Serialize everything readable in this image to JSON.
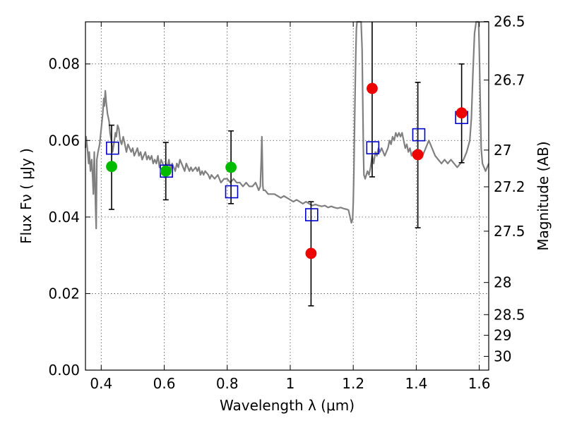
{
  "chart_data": {
    "type": "scatter",
    "xlabel": "Wavelength  λ (μm)",
    "ylabel": "Flux  Fν  ( μJy )",
    "y2label": "Magnitude (AB)",
    "xlim": [
      0.35,
      1.63
    ],
    "ylim": [
      0.0,
      0.091
    ],
    "grid": true,
    "x_ticks": [
      {
        "v": 0.4,
        "label": "0.4"
      },
      {
        "v": 0.6,
        "label": "0.6"
      },
      {
        "v": 0.8,
        "label": "0.8"
      },
      {
        "v": 1.0,
        "label": "1"
      },
      {
        "v": 1.2,
        "label": "1.2"
      },
      {
        "v": 1.4,
        "label": "1.4"
      },
      {
        "v": 1.6,
        "label": "1.6"
      }
    ],
    "y_ticks": [
      {
        "v": 0.0,
        "label": "0.00"
      },
      {
        "v": 0.02,
        "label": "0.02"
      },
      {
        "v": 0.04,
        "label": "0.04"
      },
      {
        "v": 0.06,
        "label": "0.06"
      },
      {
        "v": 0.08,
        "label": "0.08"
      }
    ],
    "mag_ticks": [
      {
        "flux": 0.0911,
        "label": "26.5"
      },
      {
        "flux": 0.0758,
        "label": "26.7"
      },
      {
        "flux": 0.0575,
        "label": "27"
      },
      {
        "flux": 0.0479,
        "label": "27.2"
      },
      {
        "flux": 0.0363,
        "label": "27.5"
      },
      {
        "flux": 0.0229,
        "label": "28"
      },
      {
        "flux": 0.0145,
        "label": "28.5"
      },
      {
        "flux": 0.0091,
        "label": "29"
      },
      {
        "flux": 0.0036,
        "label": "30"
      }
    ],
    "colors": {
      "spectrum": "#808080",
      "model": "#0000cc",
      "green": "#00bb00",
      "red": "#ee0000",
      "errorbar": "#000000"
    },
    "series": [
      {
        "type": "line",
        "points": [
          [
            0.35,
            0.058
          ],
          [
            0.352,
            0.061
          ],
          [
            0.356,
            0.058
          ],
          [
            0.36,
            0.054
          ],
          [
            0.362,
            0.057
          ],
          [
            0.366,
            0.052
          ],
          [
            0.37,
            0.055
          ],
          [
            0.373,
            0.05
          ],
          [
            0.375,
            0.046
          ],
          [
            0.378,
            0.057
          ],
          [
            0.382,
            0.043
          ],
          [
            0.384,
            0.037
          ],
          [
            0.386,
            0.055
          ],
          [
            0.39,
            0.057
          ],
          [
            0.395,
            0.059
          ],
          [
            0.4,
            0.063
          ],
          [
            0.405,
            0.067
          ],
          [
            0.408,
            0.071
          ],
          [
            0.41,
            0.069
          ],
          [
            0.413,
            0.073
          ],
          [
            0.416,
            0.07
          ],
          [
            0.42,
            0.067
          ],
          [
            0.425,
            0.065
          ],
          [
            0.428,
            0.062
          ],
          [
            0.432,
            0.06
          ],
          [
            0.436,
            0.057
          ],
          [
            0.44,
            0.059
          ],
          [
            0.445,
            0.062
          ],
          [
            0.448,
            0.061
          ],
          [
            0.452,
            0.064
          ],
          [
            0.456,
            0.063
          ],
          [
            0.46,
            0.06
          ],
          [
            0.465,
            0.059
          ],
          [
            0.47,
            0.061
          ],
          [
            0.475,
            0.059
          ],
          [
            0.48,
            0.057
          ],
          [
            0.485,
            0.059
          ],
          [
            0.49,
            0.058
          ],
          [
            0.495,
            0.057
          ],
          [
            0.5,
            0.058
          ],
          [
            0.505,
            0.056
          ],
          [
            0.51,
            0.057
          ],
          [
            0.515,
            0.058
          ],
          [
            0.52,
            0.056
          ],
          [
            0.525,
            0.057
          ],
          [
            0.53,
            0.055
          ],
          [
            0.535,
            0.056
          ],
          [
            0.54,
            0.057
          ],
          [
            0.545,
            0.055
          ],
          [
            0.55,
            0.056
          ],
          [
            0.555,
            0.055
          ],
          [
            0.56,
            0.056
          ],
          [
            0.565,
            0.054
          ],
          [
            0.57,
            0.055
          ],
          [
            0.575,
            0.054
          ],
          [
            0.58,
            0.056
          ],
          [
            0.585,
            0.053
          ],
          [
            0.59,
            0.055
          ],
          [
            0.595,
            0.054
          ],
          [
            0.6,
            0.053
          ],
          [
            0.605,
            0.054
          ],
          [
            0.61,
            0.053
          ],
          [
            0.615,
            0.055
          ],
          [
            0.62,
            0.052
          ],
          [
            0.625,
            0.054
          ],
          [
            0.63,
            0.053
          ],
          [
            0.635,
            0.052
          ],
          [
            0.64,
            0.054
          ],
          [
            0.645,
            0.053
          ],
          [
            0.65,
            0.055
          ],
          [
            0.655,
            0.054
          ],
          [
            0.66,
            0.053
          ],
          [
            0.665,
            0.052
          ],
          [
            0.67,
            0.054
          ],
          [
            0.675,
            0.053
          ],
          [
            0.68,
            0.052
          ],
          [
            0.685,
            0.053
          ],
          [
            0.69,
            0.052
          ],
          [
            0.7,
            0.053
          ],
          [
            0.705,
            0.052
          ],
          [
            0.71,
            0.053
          ],
          [
            0.715,
            0.051
          ],
          [
            0.72,
            0.052
          ],
          [
            0.725,
            0.051
          ],
          [
            0.73,
            0.052
          ],
          [
            0.74,
            0.051
          ],
          [
            0.745,
            0.05
          ],
          [
            0.75,
            0.051
          ],
          [
            0.76,
            0.05
          ],
          [
            0.77,
            0.051
          ],
          [
            0.78,
            0.049
          ],
          [
            0.79,
            0.05
          ],
          [
            0.8,
            0.05
          ],
          [
            0.81,
            0.049
          ],
          [
            0.82,
            0.05
          ],
          [
            0.83,
            0.049
          ],
          [
            0.84,
            0.049
          ],
          [
            0.85,
            0.048
          ],
          [
            0.86,
            0.049
          ],
          [
            0.87,
            0.048
          ],
          [
            0.88,
            0.048
          ],
          [
            0.89,
            0.049
          ],
          [
            0.9,
            0.047
          ],
          [
            0.905,
            0.048
          ],
          [
            0.908,
            0.055
          ],
          [
            0.91,
            0.061
          ],
          [
            0.913,
            0.048
          ],
          [
            0.915,
            0.047
          ],
          [
            0.92,
            0.047
          ],
          [
            0.93,
            0.046
          ],
          [
            0.94,
            0.046
          ],
          [
            0.95,
            0.046
          ],
          [
            0.96,
            0.0455
          ],
          [
            0.97,
            0.045
          ],
          [
            0.98,
            0.0455
          ],
          [
            0.99,
            0.045
          ],
          [
            1.0,
            0.0445
          ],
          [
            1.01,
            0.044
          ],
          [
            1.02,
            0.0445
          ],
          [
            1.03,
            0.044
          ],
          [
            1.04,
            0.0435
          ],
          [
            1.05,
            0.044
          ],
          [
            1.06,
            0.0435
          ],
          [
            1.07,
            0.043
          ],
          [
            1.08,
            0.0433
          ],
          [
            1.09,
            0.043
          ],
          [
            1.1,
            0.0428
          ],
          [
            1.11,
            0.043
          ],
          [
            1.12,
            0.0425
          ],
          [
            1.13,
            0.0428
          ],
          [
            1.14,
            0.0425
          ],
          [
            1.15,
            0.0423
          ],
          [
            1.16,
            0.0425
          ],
          [
            1.17,
            0.0422
          ],
          [
            1.18,
            0.042
          ],
          [
            1.185,
            0.0418
          ],
          [
            1.19,
            0.04
          ],
          [
            1.194,
            0.0385
          ],
          [
            1.198,
            0.0395
          ],
          [
            1.2,
            0.044
          ],
          [
            1.202,
            0.052
          ],
          [
            1.205,
            0.068
          ],
          [
            1.208,
            0.082
          ],
          [
            1.21,
            0.089
          ],
          [
            1.212,
            0.091
          ],
          [
            1.225,
            0.091
          ],
          [
            1.228,
            0.084
          ],
          [
            1.23,
            0.071
          ],
          [
            1.232,
            0.058
          ],
          [
            1.234,
            0.051
          ],
          [
            1.238,
            0.05
          ],
          [
            1.245,
            0.052
          ],
          [
            1.25,
            0.051
          ],
          [
            1.255,
            0.053
          ],
          [
            1.26,
            0.056
          ],
          [
            1.265,
            0.054
          ],
          [
            1.27,
            0.057
          ],
          [
            1.275,
            0.056
          ],
          [
            1.28,
            0.058
          ],
          [
            1.285,
            0.057
          ],
          [
            1.29,
            0.058
          ],
          [
            1.295,
            0.057
          ],
          [
            1.3,
            0.056
          ],
          [
            1.305,
            0.057
          ],
          [
            1.31,
            0.058
          ],
          [
            1.315,
            0.06
          ],
          [
            1.32,
            0.059
          ],
          [
            1.325,
            0.061
          ],
          [
            1.33,
            0.06
          ],
          [
            1.335,
            0.062
          ],
          [
            1.34,
            0.061
          ],
          [
            1.345,
            0.062
          ],
          [
            1.35,
            0.061
          ],
          [
            1.355,
            0.062
          ],
          [
            1.36,
            0.06
          ],
          [
            1.365,
            0.058
          ],
          [
            1.37,
            0.059
          ],
          [
            1.375,
            0.057
          ],
          [
            1.38,
            0.058
          ],
          [
            1.385,
            0.056
          ],
          [
            1.39,
            0.057
          ],
          [
            1.4,
            0.056
          ],
          [
            1.41,
            0.057
          ],
          [
            1.42,
            0.056
          ],
          [
            1.43,
            0.058
          ],
          [
            1.44,
            0.06
          ],
          [
            1.45,
            0.058
          ],
          [
            1.46,
            0.056
          ],
          [
            1.47,
            0.055
          ],
          [
            1.48,
            0.054
          ],
          [
            1.49,
            0.055
          ],
          [
            1.5,
            0.054
          ],
          [
            1.51,
            0.055
          ],
          [
            1.52,
            0.054
          ],
          [
            1.53,
            0.053
          ],
          [
            1.54,
            0.054
          ],
          [
            1.55,
            0.055
          ],
          [
            1.56,
            0.057
          ],
          [
            1.57,
            0.06
          ],
          [
            1.575,
            0.066
          ],
          [
            1.58,
            0.078
          ],
          [
            1.585,
            0.088
          ],
          [
            1.59,
            0.091
          ],
          [
            1.598,
            0.091
          ],
          [
            1.6,
            0.084
          ],
          [
            1.603,
            0.07
          ],
          [
            1.606,
            0.058
          ],
          [
            1.61,
            0.054
          ],
          [
            1.615,
            0.053
          ],
          [
            1.62,
            0.052
          ],
          [
            1.625,
            0.053
          ],
          [
            1.63,
            0.054
          ]
        ]
      },
      {
        "type": "errorbar",
        "points": [
          {
            "x": 0.433,
            "lo": 0.042,
            "hi": 0.064
          },
          {
            "x": 0.605,
            "lo": 0.0445,
            "hi": 0.0595
          },
          {
            "x": 0.812,
            "lo": 0.0435,
            "hi": 0.0625
          },
          {
            "x": 1.066,
            "lo": 0.0168,
            "hi": 0.044
          },
          {
            "x": 1.26,
            "lo": 0.0505,
            "hi": 0.091
          },
          {
            "x": 1.405,
            "lo": 0.0372,
            "hi": 0.0752
          },
          {
            "x": 1.544,
            "lo": 0.0542,
            "hi": 0.08
          }
        ]
      },
      {
        "type": "scatter",
        "marker": "square",
        "points": [
          [
            0.436,
            0.058
          ],
          [
            0.607,
            0.052
          ],
          [
            0.814,
            0.0466
          ],
          [
            1.068,
            0.0406
          ],
          [
            1.262,
            0.0581
          ],
          [
            1.408,
            0.0615
          ],
          [
            1.544,
            0.066
          ]
        ]
      },
      {
        "type": "scatter",
        "marker": "circle",
        "color": "green",
        "points": [
          [
            0.433,
            0.0532
          ],
          [
            0.605,
            0.052
          ],
          [
            0.812,
            0.053
          ]
        ]
      },
      {
        "type": "scatter",
        "marker": "circle",
        "color": "red",
        "points": [
          [
            1.066,
            0.0305
          ],
          [
            1.26,
            0.0736
          ],
          [
            1.405,
            0.0563
          ],
          [
            1.544,
            0.0672
          ]
        ]
      }
    ]
  }
}
